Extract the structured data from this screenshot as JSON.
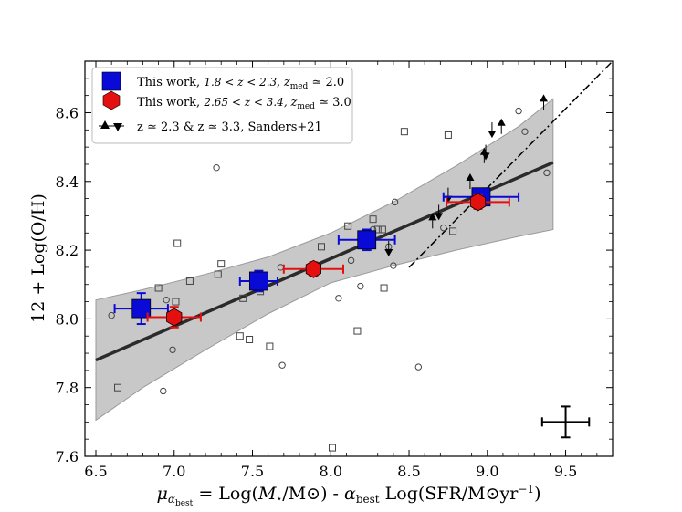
{
  "chart_data": {
    "type": "scatter",
    "title": "",
    "xlabel": "μ_α_best = Log(M⋆/M⊙) - α_best Log(SFR/M⊙yr⁻¹)",
    "xlabel_parts": {
      "mu": "μ",
      "mu_sub": "α",
      "mu_subsub": "best",
      "eq": " = Log(",
      "M": "M",
      "star": "⋆",
      "msun": "/M⊙) - ",
      "alpha": "α",
      "alpha_sub": "best",
      "tail": " Log(SFR/M⊙yr",
      "exp": "−1",
      "close": ")"
    },
    "ylabel": "12 + Log(O/H)",
    "xlim": [
      6.43,
      9.8
    ],
    "ylim": [
      7.6,
      8.75
    ],
    "xticks": [
      6.5,
      7.0,
      7.5,
      8.0,
      8.5,
      9.0,
      9.5
    ],
    "xtick_labels": [
      "6.5",
      "7.0",
      "7.5",
      "8.0",
      "8.5",
      "9.0",
      "9.5"
    ],
    "yticks": [
      7.6,
      7.8,
      8.0,
      8.2,
      8.4,
      8.6
    ],
    "ytick_labels": [
      "7.6",
      "7.8",
      "8.0",
      "8.2",
      "8.4",
      "8.6"
    ],
    "legend": {
      "position": "upper-left",
      "entries": [
        {
          "label": "This work, 1.8 < z < 2.3,  z_med ≃ 2.0",
          "marker": "square",
          "color": "#0a0ad6",
          "parts": {
            "main": "This work, ",
            "range": "1.8 < z < 2.3,  ",
            "zmed": "z",
            "med": "med",
            "tail": " ≃ 2.0"
          }
        },
        {
          "label": "This work, 2.65 < z < 3.4,  z_med ≃ 3.0",
          "marker": "hexagon",
          "color": "#e41010",
          "parts": {
            "main": "This work, ",
            "range": "2.65 < z < 3.4,  ",
            "zmed": "z",
            "med": "med",
            "tail": " ≃ 3.0"
          }
        },
        {
          "label": "z ≃ 2.3 & z ≃ 3.3, Sanders+21",
          "marker": "triangles",
          "color": "#000000",
          "parts": {
            "main": "z ≃ 2.3 & z ≃ 3.3, Sanders+21"
          }
        }
      ]
    },
    "series": [
      {
        "name": "This work, 1.8<z<2.3",
        "marker": "square",
        "color": "#0a0ad6",
        "points": [
          {
            "x": 6.79,
            "y": 8.03,
            "xerr": 0.17,
            "yerr": 0.045
          },
          {
            "x": 7.54,
            "y": 8.11,
            "xerr": 0.12,
            "yerr": 0.03
          },
          {
            "x": 8.23,
            "y": 8.23,
            "xerr": 0.18,
            "yerr": 0.03
          },
          {
            "x": 8.96,
            "y": 8.355,
            "xerr": 0.24,
            "yerr": 0.02
          }
        ]
      },
      {
        "name": "This work, 2.65<z<3.4",
        "marker": "hexagon",
        "color": "#e41010",
        "points": [
          {
            "x": 7.0,
            "y": 8.005,
            "xerr": 0.17,
            "yerr": 0.03
          },
          {
            "x": 7.89,
            "y": 8.145,
            "xerr": 0.19,
            "yerr": 0.02
          },
          {
            "x": 8.94,
            "y": 8.34,
            "xerr": 0.2,
            "yerr": 0.02
          }
        ]
      },
      {
        "name": "Sanders+21",
        "marker": "triangle",
        "color": "#000000",
        "points": [
          {
            "x": 9.36,
            "y": 8.64,
            "dir": "up"
          },
          {
            "x": 9.09,
            "y": 8.57,
            "dir": "up"
          },
          {
            "x": 8.89,
            "y": 8.41,
            "dir": "up"
          },
          {
            "x": 8.98,
            "y": 8.485,
            "dir": "up"
          },
          {
            "x": 8.65,
            "y": 8.295,
            "dir": "up"
          },
          {
            "x": 9.03,
            "y": 8.54,
            "dir": "down"
          },
          {
            "x": 8.99,
            "y": 8.475,
            "dir": "down"
          },
          {
            "x": 8.75,
            "y": 8.35,
            "dir": "down"
          },
          {
            "x": 8.69,
            "y": 8.3,
            "dir": "down"
          },
          {
            "x": 8.37,
            "y": 8.195,
            "dir": "down"
          }
        ]
      },
      {
        "name": "individual (open squares)",
        "marker": "open-square",
        "color": "#444444",
        "points": [
          {
            "x": 6.64,
            "y": 7.8
          },
          {
            "x": 6.9,
            "y": 8.09
          },
          {
            "x": 7.02,
            "y": 8.22
          },
          {
            "x": 7.01,
            "y": 8.05
          },
          {
            "x": 7.1,
            "y": 8.11
          },
          {
            "x": 7.3,
            "y": 8.16
          },
          {
            "x": 7.28,
            "y": 8.13
          },
          {
            "x": 7.42,
            "y": 7.95
          },
          {
            "x": 7.44,
            "y": 8.06
          },
          {
            "x": 7.48,
            "y": 7.94
          },
          {
            "x": 7.55,
            "y": 8.08
          },
          {
            "x": 7.61,
            "y": 7.92
          },
          {
            "x": 7.94,
            "y": 8.21
          },
          {
            "x": 8.01,
            "y": 7.625
          },
          {
            "x": 8.11,
            "y": 8.27
          },
          {
            "x": 8.17,
            "y": 7.965
          },
          {
            "x": 8.27,
            "y": 8.29
          },
          {
            "x": 8.34,
            "y": 8.09
          },
          {
            "x": 8.47,
            "y": 8.545
          },
          {
            "x": 8.75,
            "y": 8.535
          },
          {
            "x": 8.78,
            "y": 8.255
          },
          {
            "x": 8.33,
            "y": 8.26
          },
          {
            "x": 8.3,
            "y": 8.26
          }
        ]
      },
      {
        "name": "individual (open circles)",
        "marker": "open-circle",
        "color": "#444444",
        "points": [
          {
            "x": 6.6,
            "y": 8.01
          },
          {
            "x": 6.95,
            "y": 8.055
          },
          {
            "x": 6.93,
            "y": 7.79
          },
          {
            "x": 6.99,
            "y": 7.91
          },
          {
            "x": 7.27,
            "y": 8.44
          },
          {
            "x": 7.69,
            "y": 7.865
          },
          {
            "x": 7.68,
            "y": 8.15
          },
          {
            "x": 8.05,
            "y": 8.06
          },
          {
            "x": 8.13,
            "y": 8.17
          },
          {
            "x": 8.19,
            "y": 8.095
          },
          {
            "x": 8.4,
            "y": 8.155
          },
          {
            "x": 8.41,
            "y": 8.34
          },
          {
            "x": 8.56,
            "y": 7.86
          },
          {
            "x": 8.72,
            "y": 8.265
          },
          {
            "x": 9.2,
            "y": 8.605
          },
          {
            "x": 9.24,
            "y": 8.545
          },
          {
            "x": 9.38,
            "y": 8.425
          },
          {
            "x": 8.27,
            "y": 8.26
          },
          {
            "x": 8.37,
            "y": 8.21
          }
        ]
      }
    ],
    "fit_line": {
      "x": [
        6.5,
        9.42
      ],
      "y": [
        7.88,
        8.455
      ]
    },
    "confidence_band": {
      "x": [
        6.5,
        6.8,
        7.2,
        7.6,
        8.0,
        8.4,
        8.8,
        9.2,
        9.42
      ],
      "upper": [
        8.055,
        8.085,
        8.13,
        8.18,
        8.25,
        8.34,
        8.445,
        8.56,
        8.64
      ],
      "lower": [
        7.705,
        7.8,
        7.91,
        8.015,
        8.105,
        8.155,
        8.2,
        8.24,
        8.26
      ]
    },
    "dashdot_line": {
      "x": [
        8.5,
        9.8
      ],
      "y": [
        8.15,
        8.75
      ]
    },
    "typical_error": {
      "x": 9.5,
      "y": 7.7,
      "xerr": 0.15,
      "yerr": 0.045
    }
  }
}
